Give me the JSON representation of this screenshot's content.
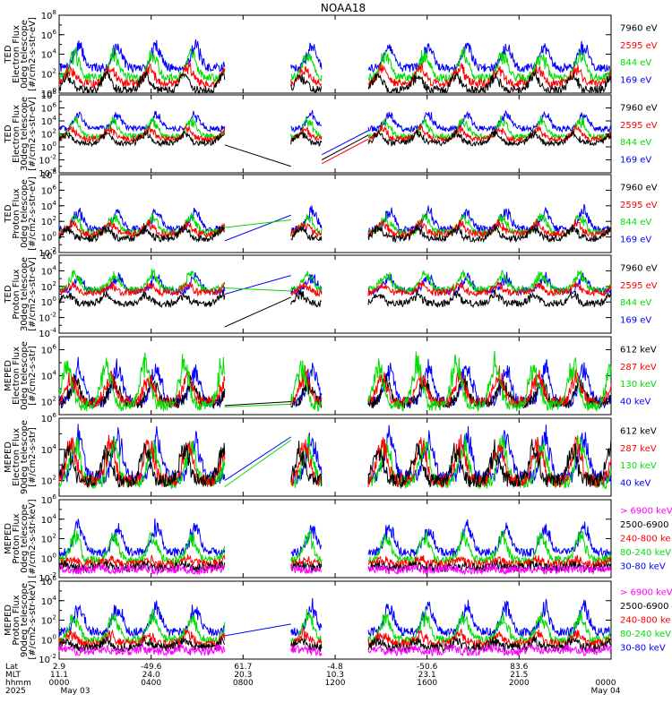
{
  "title": "NOAA18",
  "chart_data": [
    {
      "type": "line",
      "ylabel": [
        "TED",
        "Electron Flux",
        "0deg telescope",
        "[#/cm2-s-str-eV]"
      ],
      "ylim_exp": [
        0,
        8
      ],
      "yticks": [
        {
          "exp": 0,
          "label": "10^0"
        },
        {
          "exp": 2,
          "label": "10^2"
        },
        {
          "exp": 4,
          "label": "10^4"
        },
        {
          "exp": 6,
          "label": "10^6"
        },
        {
          "exp": 8,
          "label": "10^8"
        }
      ],
      "legend": [
        {
          "name": "7960 eV",
          "color": "#000000"
        },
        {
          "name": "2595 eV",
          "color": "#ff0000"
        },
        {
          "name": "844 eV",
          "color": "#00dd00"
        },
        {
          "name": "169 eV",
          "color": "#0000ff"
        }
      ],
      "series": [
        {
          "color": "#0000ff",
          "base": 2.6,
          "amp": 2.8
        },
        {
          "color": "#00dd00",
          "base": 1.6,
          "amp": 3.0
        },
        {
          "color": "#ff0000",
          "base": 1.0,
          "amp": 2.0
        },
        {
          "color": "#000000",
          "base": 0.3,
          "amp": 1.8
        }
      ]
    },
    {
      "type": "line",
      "ylabel": [
        "TED",
        "Electron Flux",
        "30deg telescope",
        "[#/cm2-s-str-eV]"
      ],
      "ylim_exp": [
        -4,
        8
      ],
      "yticks": [
        {
          "exp": -4,
          "label": "10^-4"
        },
        {
          "exp": -2,
          "label": "10^-2"
        },
        {
          "exp": 0,
          "label": "10^0"
        },
        {
          "exp": 2,
          "label": "10^2"
        },
        {
          "exp": 4,
          "label": "10^4"
        },
        {
          "exp": 6,
          "label": "10^6"
        },
        {
          "exp": 8,
          "label": "10^8"
        }
      ],
      "legend": [
        {
          "name": "7960 eV",
          "color": "#000000"
        },
        {
          "name": "2595 eV",
          "color": "#ff0000"
        },
        {
          "name": "844 eV",
          "color": "#00dd00"
        },
        {
          "name": "169 eV",
          "color": "#0000ff"
        }
      ],
      "series": [
        {
          "color": "#0000ff",
          "base": 2.8,
          "amp": 2.6
        },
        {
          "color": "#00dd00",
          "base": 1.6,
          "amp": 3.0
        },
        {
          "color": "#ff0000",
          "base": 1.2,
          "amp": 2.0
        },
        {
          "color": "#000000",
          "base": 0.6,
          "amp": 1.8
        }
      ],
      "bridges": [
        {
          "color": "#000000",
          "x0": 0.3,
          "y0": 0.3,
          "x1": 0.42,
          "y1": -3.0
        },
        {
          "color": "#ff0000",
          "x0": 0.476,
          "y0": -2.6,
          "x1": 0.56,
          "y1": 1.2
        },
        {
          "color": "#0000ff",
          "x0": 0.476,
          "y0": -1.2,
          "x1": 0.56,
          "y1": 2.5
        },
        {
          "color": "#000000",
          "x0": 0.476,
          "y0": -2.0,
          "x1": 0.56,
          "y1": 1.8
        }
      ]
    },
    {
      "type": "line",
      "ylabel": [
        "TED",
        "Proton Flux",
        "0deg telescope",
        "[#/cm2-s-str-eV]"
      ],
      "ylim_exp": [
        -2,
        8
      ],
      "yticks": [
        {
          "exp": -2,
          "label": "10^-2"
        },
        {
          "exp": 0,
          "label": "10^0"
        },
        {
          "exp": 2,
          "label": "10^2"
        },
        {
          "exp": 4,
          "label": "10^4"
        },
        {
          "exp": 6,
          "label": "10^6"
        },
        {
          "exp": 8,
          "label": "10^8"
        }
      ],
      "legend": [
        {
          "name": "7960 eV",
          "color": "#000000"
        },
        {
          "name": "2595 eV",
          "color": "#ff0000"
        },
        {
          "name": "844 eV",
          "color": "#00dd00"
        },
        {
          "name": "169 eV",
          "color": "#0000ff"
        }
      ],
      "series": [
        {
          "color": "#0000ff",
          "base": 1.0,
          "amp": 2.8
        },
        {
          "color": "#00dd00",
          "base": 0.6,
          "amp": 2.4
        },
        {
          "color": "#ff0000",
          "base": 0.4,
          "amp": 1.6
        },
        {
          "color": "#000000",
          "base": -0.2,
          "amp": 1.6
        }
      ],
      "bridges": [
        {
          "color": "#0000ff",
          "x0": 0.3,
          "y0": -0.5,
          "x1": 0.42,
          "y1": 2.8
        },
        {
          "color": "#00dd00",
          "x0": 0.3,
          "y0": 1.2,
          "x1": 0.42,
          "y1": 2.2
        }
      ]
    },
    {
      "type": "line",
      "ylabel": [
        "TED",
        "Proton Flux",
        "30deg telescope",
        "[#/cm2-s-str-eV]"
      ],
      "ylim_exp": [
        -4,
        6
      ],
      "yticks": [
        {
          "exp": -4,
          "label": "10^-4"
        },
        {
          "exp": -2,
          "label": "10^-2"
        },
        {
          "exp": 0,
          "label": "10^0"
        },
        {
          "exp": 2,
          "label": "10^2"
        },
        {
          "exp": 4,
          "label": "10^4"
        },
        {
          "exp": 6,
          "label": "10^6"
        }
      ],
      "legend": [
        {
          "name": "7960 eV",
          "color": "#000000"
        },
        {
          "name": "2595 eV",
          "color": "#ff0000"
        },
        {
          "name": "844 eV",
          "color": "#00dd00"
        },
        {
          "name": "169 eV",
          "color": "#0000ff"
        }
      ],
      "series": [
        {
          "color": "#0000ff",
          "base": 1.4,
          "amp": 2.2
        },
        {
          "color": "#00dd00",
          "base": 1.6,
          "amp": 2.4
        },
        {
          "color": "#ff0000",
          "base": 1.2,
          "amp": 1.2
        },
        {
          "color": "#000000",
          "base": -0.2,
          "amp": 1.4
        }
      ],
      "bridges": [
        {
          "color": "#0000ff",
          "x0": 0.3,
          "y0": 1.0,
          "x1": 0.42,
          "y1": 3.4
        },
        {
          "color": "#000000",
          "x0": 0.3,
          "y0": -3.2,
          "x1": 0.42,
          "y1": 0.6
        },
        {
          "color": "#00dd00",
          "x0": 0.3,
          "y0": 1.8,
          "x1": 0.42,
          "y1": 1.4
        }
      ]
    },
    {
      "type": "line",
      "ylabel": [
        "MEPED",
        "Electron Flux",
        "0deg telescope",
        "[#/cm2-s-str]"
      ],
      "ylim_exp": [
        1,
        7
      ],
      "yticks": [
        {
          "exp": 2,
          "label": "10^2"
        },
        {
          "exp": 4,
          "label": "10^4"
        },
        {
          "exp": 6,
          "label": "10^6"
        }
      ],
      "legend": [
        {
          "name": "612 keV",
          "color": "#000000"
        },
        {
          "name": "287 keV",
          "color": "#ff0000"
        },
        {
          "name": "130 keV",
          "color": "#00dd00"
        },
        {
          "name": "40 keV",
          "color": "#0000ff"
        }
      ],
      "series": [
        {
          "color": "#0000ff",
          "base": 2.0,
          "amp": 3.2
        },
        {
          "color": "#000000",
          "base": 1.9,
          "amp": 2.0
        },
        {
          "color": "#ff0000",
          "base": 2.0,
          "amp": 2.4
        },
        {
          "color": "#00dd00",
          "base": 1.7,
          "amp": 4.0
        }
      ],
      "bridges": [
        {
          "color": "#000000",
          "x0": 0.3,
          "y0": 1.7,
          "x1": 0.42,
          "y1": 2.0
        },
        {
          "color": "#00dd00",
          "x0": 0.3,
          "y0": 1.6,
          "x1": 0.42,
          "y1": 1.8
        }
      ]
    },
    {
      "type": "line",
      "ylabel": [
        "MEPED",
        "Electron Flux",
        "90deg telescope",
        "[#/cm2-s-str]"
      ],
      "ylim_exp": [
        1,
        6
      ],
      "yticks": [
        {
          "exp": 2,
          "label": "10^2"
        },
        {
          "exp": 4,
          "label": "10^4"
        },
        {
          "exp": 6,
          "label": "10^6"
        }
      ],
      "legend": [
        {
          "name": "612 keV",
          "color": "#000000"
        },
        {
          "name": "287 keV",
          "color": "#ff0000"
        },
        {
          "name": "130 keV",
          "color": "#00dd00"
        },
        {
          "name": "40 keV",
          "color": "#0000ff"
        }
      ],
      "series": [
        {
          "color": "#0000ff",
          "base": 2.2,
          "amp": 3.2
        },
        {
          "color": "#00dd00",
          "base": 1.9,
          "amp": 3.0
        },
        {
          "color": "#ff0000",
          "base": 2.0,
          "amp": 2.8
        },
        {
          "color": "#000000",
          "base": 2.0,
          "amp": 2.4
        }
      ],
      "bridges": [
        {
          "color": "#0000ff",
          "x0": 0.3,
          "y0": 2.0,
          "x1": 0.42,
          "y1": 4.8
        },
        {
          "color": "#00dd00",
          "x0": 0.3,
          "y0": 1.6,
          "x1": 0.42,
          "y1": 4.6
        }
      ]
    },
    {
      "type": "line",
      "ylabel": [
        "MEPED",
        "Proton Flux",
        "0deg telescope",
        "[#/cm2-s-str-keV]"
      ],
      "ylim_exp": [
        -2,
        6
      ],
      "yticks": [
        {
          "exp": -2,
          "label": "10^-2"
        },
        {
          "exp": 0,
          "label": "10^0"
        },
        {
          "exp": 2,
          "label": "10^2"
        },
        {
          "exp": 4,
          "label": "10^4"
        },
        {
          "exp": 6,
          "label": "10^6"
        }
      ],
      "legend": [
        {
          "name": "> 6900 keV",
          "color": "#ff00ff"
        },
        {
          "name": "2500-6900",
          "color": "#000000"
        },
        {
          "name": "240-800 ke",
          "color": "#ff0000"
        },
        {
          "name": "80-240 keV",
          "color": "#00dd00"
        },
        {
          "name": "30-80 keV",
          "color": "#0000ff"
        }
      ],
      "series": [
        {
          "color": "#0000ff",
          "base": 0.6,
          "amp": 3.2
        },
        {
          "color": "#00dd00",
          "base": -0.2,
          "amp": 3.0
        },
        {
          "color": "#ff0000",
          "base": -0.6,
          "amp": 0.6
        },
        {
          "color": "#000000",
          "base": -1.0,
          "amp": 0.4
        },
        {
          "color": "#ff00ff",
          "base": -1.2,
          "amp": 0.2
        }
      ]
    },
    {
      "type": "line",
      "ylabel": [
        "MEPED",
        "Proton Flux",
        "90deg telescope",
        "[#/cm2-s-str-keV]"
      ],
      "ylim_exp": [
        -2,
        6
      ],
      "yticks": [
        {
          "exp": -2,
          "label": "10^-2"
        },
        {
          "exp": 0,
          "label": "10^0"
        },
        {
          "exp": 2,
          "label": "10^2"
        },
        {
          "exp": 4,
          "label": "10^4"
        },
        {
          "exp": 6,
          "label": "10^6"
        }
      ],
      "legend": [
        {
          "name": "> 6900 keV",
          "color": "#ff00ff"
        },
        {
          "name": "2500-6900",
          "color": "#000000"
        },
        {
          "name": "240-800 ke",
          "color": "#ff0000"
        },
        {
          "name": "80-240 keV",
          "color": "#00dd00"
        },
        {
          "name": "30-80 keV",
          "color": "#0000ff"
        }
      ],
      "series": [
        {
          "color": "#0000ff",
          "base": 0.8,
          "amp": 3.2
        },
        {
          "color": "#00dd00",
          "base": 0.0,
          "amp": 3.0
        },
        {
          "color": "#ff0000",
          "base": -0.4,
          "amp": 1.2
        },
        {
          "color": "#000000",
          "base": -0.8,
          "amp": 0.8
        },
        {
          "color": "#ff00ff",
          "base": -1.2,
          "amp": 0.4
        }
      ],
      "bridges": [
        {
          "color": "#0000ff",
          "x0": 0.3,
          "y0": 0.4,
          "x1": 0.42,
          "y1": 1.6
        }
      ]
    }
  ],
  "data_coverage": [
    [
      0.0,
      0.3
    ],
    [
      0.42,
      0.476
    ],
    [
      0.56,
      1.0
    ]
  ],
  "xaxis": {
    "row_labels": [
      "Lat",
      "MLT",
      "hhmm",
      "2025"
    ],
    "ticks": [
      {
        "pos": 0.0,
        "lat": "2.9",
        "mlt": "11.1",
        "hhmm": "0000",
        "date": "May 03"
      },
      {
        "pos": 0.1667,
        "lat": "-49.6",
        "mlt": "24.0",
        "hhmm": "0400",
        "date": ""
      },
      {
        "pos": 0.3333,
        "lat": "61.7",
        "mlt": "20.3",
        "hhmm": "0800",
        "date": ""
      },
      {
        "pos": 0.5,
        "lat": "-4.8",
        "mlt": "10.3",
        "hhmm": "1200",
        "date": ""
      },
      {
        "pos": 0.6667,
        "lat": "-50.6",
        "mlt": "23.1",
        "hhmm": "1600",
        "date": ""
      },
      {
        "pos": 0.8333,
        "lat": "83.6",
        "mlt": "21.5",
        "hhmm": "2000",
        "date": ""
      },
      {
        "pos": 1.0,
        "lat": "",
        "mlt": "",
        "hhmm": "0000",
        "date": "May 04"
      }
    ]
  }
}
